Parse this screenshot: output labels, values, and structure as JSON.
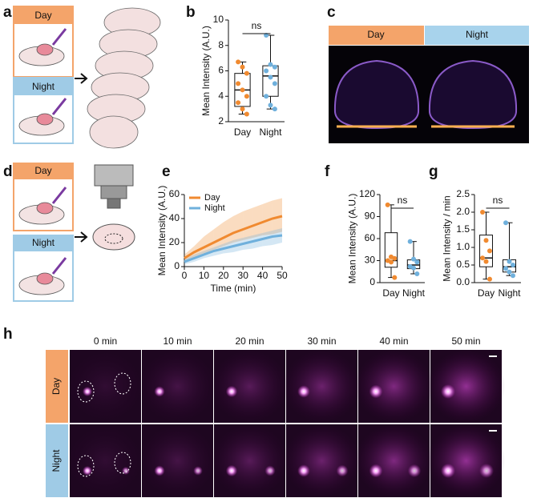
{
  "panels": {
    "a": {
      "label": "a",
      "day": "Day",
      "night": "Night"
    },
    "c": {
      "label": "c",
      "day": "Day",
      "night": "Night"
    },
    "d": {
      "label": "d",
      "day": "Day",
      "night": "Night"
    },
    "h": {
      "label": "h",
      "times": [
        "0 min",
        "10 min",
        "20 min",
        "30 min",
        "40 min",
        "50 min"
      ],
      "rows": [
        "Day",
        "Night"
      ]
    }
  },
  "chart_data": [
    {
      "type": "box",
      "panel_label": "b",
      "ylabel": "Mean Intensity (A.U.)",
      "categories": [
        "Day",
        "Night"
      ],
      "annotation": "ns",
      "ylim": [
        2,
        10
      ],
      "yticks": [
        2,
        4,
        6,
        8,
        10
      ],
      "boxes": [
        {
          "color": "#f08a30",
          "min": 2.6,
          "q1": 3.2,
          "median": 4.5,
          "q3": 5.8,
          "max": 6.7,
          "points": [
            6.7,
            6.3,
            5.8,
            5.0,
            4.5,
            4.0,
            3.5,
            3.0,
            2.6
          ]
        },
        {
          "color": "#6fb0dc",
          "min": 3.0,
          "q1": 4.0,
          "median": 5.6,
          "q3": 6.4,
          "max": 8.8,
          "points": [
            8.8,
            6.5,
            6.3,
            6.0,
            5.5,
            5.0,
            4.0,
            3.3,
            3.0
          ]
        }
      ]
    },
    {
      "type": "line",
      "panel_label": "e",
      "xlabel": "Time (min)",
      "ylabel": "Mean Intensity (A.U.)",
      "x": [
        0,
        5,
        10,
        15,
        20,
        25,
        30,
        35,
        40,
        45,
        50
      ],
      "xlim": [
        0,
        50
      ],
      "xticks": [
        0,
        10,
        20,
        30,
        40,
        50
      ],
      "ylim": [
        0,
        60
      ],
      "yticks": [
        0,
        20,
        40,
        60
      ],
      "legend": "upper left",
      "series": [
        {
          "name": "Day",
          "color": "#f08a30",
          "values": [
            7,
            12,
            16,
            20,
            24,
            28,
            31,
            34,
            37,
            40,
            42
          ],
          "lower": [
            4,
            8,
            11,
            14,
            17,
            20,
            22,
            24,
            26,
            27,
            29
          ],
          "upper": [
            10,
            17,
            25,
            31,
            37,
            42,
            46,
            49,
            52,
            55,
            57
          ]
        },
        {
          "name": "Night",
          "color": "#6fb0dc",
          "values": [
            4,
            7,
            10,
            13,
            15,
            17,
            19,
            21,
            23,
            25,
            26
          ],
          "lower": [
            2,
            4,
            7,
            9,
            11,
            12,
            14,
            15,
            17,
            18,
            20
          ],
          "upper": [
            6,
            10,
            13,
            16,
            19,
            22,
            24,
            26,
            28,
            30,
            32
          ]
        }
      ]
    },
    {
      "type": "box",
      "panel_label": "f",
      "ylabel": "Mean Intensity (A.U.)",
      "categories": [
        "Day",
        "Night"
      ],
      "annotation": "ns",
      "ylim": [
        0,
        120
      ],
      "yticks": [
        0,
        30,
        60,
        90,
        120
      ],
      "boxes": [
        {
          "color": "#f08a30",
          "min": 7,
          "q1": 21,
          "median": 30,
          "q3": 68,
          "max": 106,
          "points": [
            106,
            35,
            33,
            30,
            28,
            7
          ]
        },
        {
          "color": "#6fb0dc",
          "min": 12,
          "q1": 19,
          "median": 24,
          "q3": 31,
          "max": 56,
          "points": [
            56,
            32,
            28,
            22,
            20,
            12
          ]
        }
      ]
    },
    {
      "type": "box",
      "panel_label": "g",
      "ylabel": "Mean Intensity / min",
      "categories": [
        "Day",
        "Night"
      ],
      "annotation": "ns",
      "ylim": [
        0,
        2.5
      ],
      "yticks": [
        {
          "value": 0,
          "label": "0.0"
        },
        0.5,
        {
          "value": 1,
          "label": "1.0"
        },
        1.5,
        {
          "value": 2,
          "label": "2.0"
        },
        2.5
      ],
      "boxes": [
        {
          "color": "#f08a30",
          "min": 0.1,
          "q1": 0.45,
          "median": 0.7,
          "q3": 1.35,
          "max": 2.0,
          "points": [
            2.0,
            1.2,
            0.9,
            0.7,
            0.6,
            0.1
          ]
        },
        {
          "color": "#6fb0dc",
          "min": 0.2,
          "q1": 0.3,
          "median": 0.45,
          "q3": 0.65,
          "max": 1.7,
          "points": [
            1.7,
            0.6,
            0.5,
            0.4,
            0.3,
            0.2
          ]
        }
      ]
    }
  ]
}
